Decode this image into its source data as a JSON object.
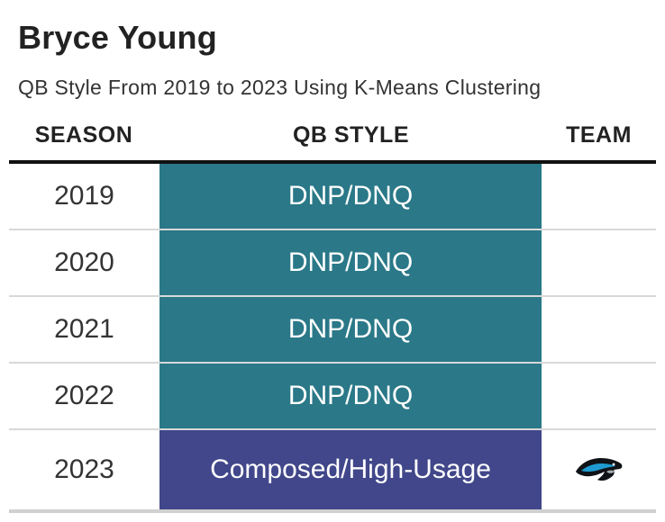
{
  "title": "Bryce Young",
  "subtitle": "QB Style From 2019 to 2023 Using K-Means Clustering",
  "headers": {
    "season": "SEASON",
    "style": "QB STYLE",
    "team": "TEAM"
  },
  "rows": [
    {
      "season": "2019",
      "style": "DNP/DNQ",
      "color": "#2a7888",
      "team_logo": ""
    },
    {
      "season": "2020",
      "style": "DNP/DNQ",
      "color": "#2a7888",
      "team_logo": ""
    },
    {
      "season": "2021",
      "style": "DNP/DNQ",
      "color": "#2a7888",
      "team_logo": ""
    },
    {
      "season": "2022",
      "style": "DNP/DNQ",
      "color": "#2a7888",
      "team_logo": ""
    },
    {
      "season": "2023",
      "style": "Composed/High-Usage",
      "color": "#41478a",
      "team_logo": "panthers-logo-icon"
    }
  ]
}
